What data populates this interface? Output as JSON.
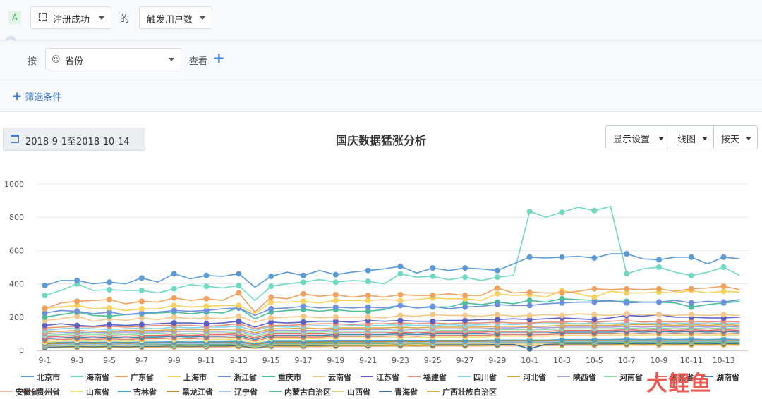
{
  "toolbar": {
    "badge": "A",
    "event_select": "注册成功",
    "of_label": "的",
    "metric_select": "触发用户数",
    "group_label": "按",
    "group_select": "省份",
    "view_label": "查看",
    "filter_label": "筛选条件"
  },
  "date_range": "2018-9-1至2018-10-14",
  "chart_controls": {
    "display": "显示设置",
    "chart_type": "线图",
    "granularity": "按天"
  },
  "watermark": "大鲤鱼",
  "colors": {
    "北京市": "#5b9bd5",
    "海南省": "#6fd9c3",
    "广东省": "#f0a15e",
    "上海市": "#f7d25a",
    "浙江省": "#6c8fe0",
    "重庆市": "#4bbf9a",
    "云南省": "#f5c88a",
    "江苏省": "#5b60c9",
    "福建省": "#e9927b",
    "四川省": "#84d8e8",
    "河北省": "#d9a843",
    "陕西省": "#a99be0",
    "河南省": "#8fe0a4",
    "湖北省": "#e66a6a",
    "湖南省": "#4a86a8",
    "贵州省": "#d9826b",
    "山东省": "#f3e07a",
    "吉林省": "#4aa0c8",
    "黑龙江省": "#b88a3a",
    "辽宁省": "#a6c4f0",
    "内蒙古自治区": "#58b58c",
    "山西省": "#d9cf8a",
    "青海省": "#3c6e8f",
    "广西壮族自治区": "#d4b02a",
    "安徽省": "#efb8a6"
  },
  "chart_data": {
    "type": "line",
    "title": "国庆数据猛涨分析",
    "xlabel": "",
    "ylabel": "",
    "ylim": [
      0,
      1000
    ],
    "yticks": [
      0,
      200,
      400,
      600,
      800,
      1000
    ],
    "x": [
      "9-1",
      "9-2",
      "9-3",
      "9-4",
      "9-5",
      "9-6",
      "9-7",
      "9-8",
      "9-9",
      "9-10",
      "9-11",
      "9-12",
      "9-13",
      "9-14",
      "9-15",
      "9-16",
      "9-17",
      "9-18",
      "9-19",
      "9-20",
      "9-21",
      "9-22",
      "9-23",
      "9-24",
      "9-25",
      "9-26",
      "9-27",
      "9-28",
      "9-29",
      "9-30",
      "10-1",
      "10-2",
      "10-3",
      "10-4",
      "10-5",
      "10-6",
      "10-7",
      "10-8",
      "10-9",
      "10-10",
      "10-11",
      "10-12",
      "10-13",
      "10-14"
    ],
    "xticks": [
      "9-1",
      "9-3",
      "9-5",
      "9-7",
      "9-9",
      "9-11",
      "9-13",
      "9-15",
      "9-17",
      "9-19",
      "9-21",
      "9-23",
      "9-25",
      "9-27",
      "9-29",
      "10-1",
      "10-3",
      "10-5",
      "10-7",
      "10-9",
      "10-11",
      "10-13"
    ],
    "series": [
      {
        "name": "北京市",
        "values": [
          390,
          420,
          420,
          400,
          410,
          400,
          435,
          410,
          460,
          430,
          450,
          445,
          460,
          380,
          445,
          470,
          450,
          480,
          455,
          470,
          480,
          490,
          505,
          465,
          495,
          480,
          495,
          490,
          480,
          520,
          560,
          555,
          560,
          565,
          555,
          580,
          580,
          550,
          545,
          560,
          560,
          520,
          560,
          550
        ]
      },
      {
        "name": "海南省",
        "values": [
          330,
          360,
          400,
          360,
          365,
          360,
          360,
          345,
          370,
          395,
          385,
          375,
          390,
          300,
          385,
          400,
          410,
          425,
          410,
          420,
          415,
          400,
          460,
          440,
          445,
          425,
          440,
          420,
          440,
          450,
          835,
          800,
          830,
          860,
          840,
          865,
          460,
          490,
          500,
          470,
          450,
          470,
          500,
          450
        ]
      },
      {
        "name": "广东省",
        "values": [
          250,
          285,
          295,
          300,
          305,
          280,
          295,
          290,
          315,
          300,
          310,
          300,
          345,
          230,
          320,
          310,
          340,
          325,
          335,
          320,
          330,
          320,
          335,
          330,
          330,
          340,
          330,
          330,
          375,
          345,
          350,
          345,
          345,
          355,
          370,
          365,
          370,
          365,
          370,
          355,
          370,
          375,
          385,
          365
        ]
      },
      {
        "name": "上海市",
        "values": [
          255,
          260,
          270,
          250,
          255,
          240,
          250,
          250,
          270,
          260,
          265,
          270,
          270,
          220,
          290,
          290,
          295,
          285,
          300,
          300,
          300,
          305,
          300,
          305,
          315,
          310,
          310,
          300,
          340,
          330,
          335,
          320,
          360,
          340,
          320,
          355,
          345,
          345,
          350,
          345,
          360,
          345,
          355,
          350
        ]
      },
      {
        "name": "浙江省",
        "values": [
          225,
          240,
          235,
          220,
          230,
          215,
          225,
          230,
          240,
          235,
          240,
          250,
          255,
          210,
          250,
          255,
          265,
          255,
          260,
          255,
          260,
          255,
          270,
          255,
          265,
          250,
          260,
          265,
          275,
          270,
          270,
          280,
          285,
          290,
          290,
          300,
          285,
          290,
          290,
          300,
          285,
          295,
          290,
          305
        ]
      },
      {
        "name": "重庆市",
        "values": [
          200,
          215,
          230,
          210,
          205,
          215,
          220,
          225,
          230,
          220,
          230,
          225,
          255,
          190,
          230,
          240,
          245,
          235,
          245,
          235,
          235,
          245,
          270,
          255,
          260,
          260,
          285,
          275,
          290,
          280,
          300,
          290,
          310,
          305,
          300,
          295,
          295,
          290,
          290,
          285,
          260,
          275,
          285,
          295
        ]
      },
      {
        "name": "云南省",
        "values": [
          180,
          190,
          205,
          175,
          190,
          180,
          195,
          185,
          200,
          190,
          195,
          190,
          205,
          170,
          195,
          200,
          205,
          195,
          200,
          200,
          200,
          195,
          210,
          205,
          215,
          210,
          210,
          205,
          215,
          205,
          210,
          215,
          210,
          220,
          215,
          210,
          220,
          215,
          215,
          210,
          215,
          210,
          215,
          210
        ]
      },
      {
        "name": "江苏省",
        "values": [
          150,
          160,
          150,
          145,
          155,
          150,
          155,
          160,
          165,
          165,
          160,
          165,
          175,
          140,
          170,
          165,
          170,
          175,
          175,
          170,
          180,
          175,
          180,
          175,
          175,
          180,
          180,
          185,
          185,
          190,
          185,
          190,
          195,
          190,
          185,
          195,
          210,
          205,
          215,
          200,
          200,
          195,
          195,
          200
        ]
      },
      {
        "name": "福建省",
        "values": [
          135,
          140,
          145,
          140,
          145,
          140,
          145,
          150,
          150,
          150,
          145,
          150,
          160,
          130,
          150,
          150,
          155,
          160,
          160,
          155,
          160,
          160,
          165,
          160,
          165,
          160,
          165,
          165,
          170,
          165,
          165,
          170,
          170,
          175,
          170,
          175,
          180,
          170,
          175,
          170,
          175,
          170,
          175,
          170
        ]
      },
      {
        "name": "四川省",
        "values": [
          120,
          130,
          135,
          130,
          125,
          130,
          135,
          130,
          140,
          135,
          140,
          140,
          145,
          120,
          145,
          140,
          145,
          150,
          145,
          150,
          150,
          150,
          155,
          150,
          150,
          155,
          150,
          155,
          160,
          155,
          160,
          160,
          165,
          160,
          165,
          160,
          165,
          160,
          165,
          160,
          165,
          160,
          165,
          160
        ]
      },
      {
        "name": "河北省",
        "values": [
          110,
          115,
          120,
          115,
          115,
          120,
          120,
          120,
          125,
          125,
          125,
          125,
          130,
          105,
          130,
          130,
          135,
          130,
          135,
          135,
          135,
          135,
          140,
          135,
          140,
          140,
          140,
          140,
          145,
          145,
          145,
          145,
          150,
          150,
          150,
          150,
          155,
          155,
          155,
          150,
          155,
          150,
          155,
          150
        ]
      },
      {
        "name": "陕西省",
        "values": [
          100,
          105,
          110,
          105,
          110,
          110,
          110,
          110,
          115,
          115,
          115,
          115,
          120,
          95,
          120,
          120,
          120,
          120,
          125,
          125,
          125,
          125,
          130,
          125,
          130,
          130,
          130,
          130,
          135,
          135,
          140,
          135,
          140,
          140,
          140,
          140,
          145,
          140,
          145,
          140,
          145,
          140,
          145,
          140
        ]
      },
      {
        "name": "河南省",
        "values": [
          90,
          95,
          100,
          95,
          100,
          95,
          100,
          100,
          105,
          100,
          105,
          105,
          110,
          85,
          110,
          110,
          110,
          110,
          115,
          115,
          115,
          115,
          120,
          115,
          120,
          120,
          120,
          120,
          125,
          125,
          125,
          125,
          130,
          130,
          130,
          130,
          135,
          130,
          135,
          130,
          135,
          130,
          135,
          130
        ]
      },
      {
        "name": "湖北省",
        "values": [
          80,
          85,
          90,
          85,
          90,
          85,
          90,
          90,
          95,
          90,
          95,
          95,
          100,
          75,
          100,
          100,
          100,
          100,
          105,
          105,
          105,
          105,
          110,
          105,
          110,
          110,
          110,
          110,
          115,
          115,
          115,
          115,
          120,
          120,
          120,
          120,
          125,
          120,
          125,
          120,
          125,
          120,
          125,
          120
        ]
      },
      {
        "name": "湖南省",
        "values": [
          70,
          75,
          80,
          75,
          80,
          75,
          80,
          80,
          85,
          80,
          85,
          85,
          90,
          65,
          90,
          90,
          90,
          90,
          95,
          95,
          95,
          95,
          100,
          95,
          100,
          100,
          100,
          100,
          105,
          105,
          105,
          105,
          110,
          110,
          110,
          110,
          115,
          110,
          115,
          110,
          115,
          110,
          115,
          110
        ]
      },
      {
        "name": "贵州省",
        "values": [
          60,
          65,
          70,
          65,
          70,
          65,
          70,
          70,
          75,
          70,
          75,
          75,
          80,
          55,
          80,
          80,
          80,
          80,
          85,
          85,
          85,
          85,
          90,
          85,
          90,
          90,
          90,
          90,
          95,
          95,
          95,
          95,
          100,
          100,
          100,
          100,
          105,
          100,
          105,
          100,
          105,
          100,
          105,
          100
        ]
      },
      {
        "name": "山东省",
        "values": [
          50,
          55,
          60,
          55,
          60,
          55,
          60,
          60,
          65,
          60,
          65,
          65,
          70,
          45,
          70,
          70,
          70,
          70,
          75,
          75,
          75,
          75,
          80,
          75,
          80,
          80,
          80,
          80,
          85,
          85,
          85,
          85,
          90,
          90,
          90,
          90,
          95,
          90,
          95,
          90,
          95,
          90,
          95,
          90
        ]
      },
      {
        "name": "吉林省",
        "values": [
          45,
          48,
          50,
          48,
          50,
          48,
          50,
          50,
          52,
          50,
          52,
          52,
          55,
          40,
          55,
          55,
          55,
          55,
          58,
          58,
          58,
          58,
          60,
          58,
          60,
          60,
          60,
          60,
          62,
          62,
          62,
          62,
          65,
          65,
          65,
          65,
          68,
          65,
          68,
          65,
          68,
          65,
          68,
          65
        ]
      },
      {
        "name": "黑龙江省",
        "values": [
          40,
          42,
          45,
          42,
          45,
          42,
          45,
          45,
          47,
          45,
          47,
          47,
          50,
          35,
          50,
          50,
          50,
          50,
          52,
          52,
          52,
          52,
          55,
          52,
          55,
          55,
          55,
          55,
          57,
          57,
          57,
          57,
          60,
          60,
          60,
          60,
          62,
          60,
          62,
          60,
          62,
          60,
          62,
          60
        ]
      },
      {
        "name": "辽宁省",
        "values": [
          35,
          37,
          40,
          37,
          40,
          37,
          40,
          40,
          42,
          40,
          42,
          42,
          45,
          30,
          45,
          45,
          45,
          45,
          47,
          47,
          47,
          47,
          50,
          47,
          50,
          50,
          50,
          50,
          52,
          52,
          52,
          52,
          55,
          55,
          55,
          55,
          57,
          55,
          57,
          55,
          57,
          55,
          57,
          55
        ]
      },
      {
        "name": "内蒙古自治区",
        "values": [
          30,
          32,
          35,
          32,
          35,
          32,
          35,
          35,
          37,
          35,
          37,
          37,
          40,
          25,
          40,
          40,
          40,
          40,
          42,
          42,
          42,
          42,
          45,
          42,
          45,
          45,
          45,
          45,
          47,
          47,
          47,
          47,
          50,
          50,
          50,
          50,
          52,
          50,
          52,
          50,
          52,
          50,
          52,
          50
        ]
      },
      {
        "name": "山西省",
        "values": [
          25,
          27,
          30,
          27,
          30,
          27,
          30,
          30,
          32,
          30,
          32,
          32,
          35,
          20,
          35,
          35,
          35,
          35,
          37,
          37,
          37,
          37,
          40,
          37,
          40,
          40,
          40,
          40,
          42,
          42,
          42,
          42,
          45,
          45,
          45,
          45,
          47,
          45,
          47,
          45,
          47,
          45,
          47,
          45
        ]
      },
      {
        "name": "青海省",
        "values": [
          20,
          22,
          25,
          22,
          25,
          22,
          25,
          25,
          27,
          25,
          27,
          27,
          30,
          15,
          30,
          30,
          30,
          30,
          32,
          32,
          32,
          32,
          35,
          32,
          35,
          35,
          35,
          35,
          37,
          37,
          10,
          37,
          40,
          40,
          40,
          40,
          42,
          40,
          42,
          40,
          42,
          40,
          42,
          40
        ]
      },
      {
        "name": "广西壮族自治区",
        "values": [
          20,
          20,
          22,
          20,
          22,
          20,
          22,
          22,
          24,
          22,
          24,
          24,
          26,
          14,
          26,
          26,
          26,
          26,
          28,
          28,
          28,
          28,
          30,
          28,
          30,
          30,
          30,
          30,
          32,
          32,
          32,
          32,
          34,
          34,
          34,
          34,
          36,
          34,
          36,
          34,
          36,
          34,
          36,
          34
        ]
      },
      {
        "name": "安徽省",
        "values": [
          15,
          16,
          18,
          16,
          18,
          16,
          18,
          18,
          20,
          18,
          20,
          20,
          22,
          12,
          22,
          22,
          22,
          22,
          24,
          24,
          24,
          24,
          26,
          24,
          26,
          26,
          26,
          26,
          28,
          28,
          28,
          28,
          30,
          30,
          30,
          30,
          32,
          30,
          32,
          30,
          32,
          30,
          32,
          30
        ]
      }
    ]
  }
}
